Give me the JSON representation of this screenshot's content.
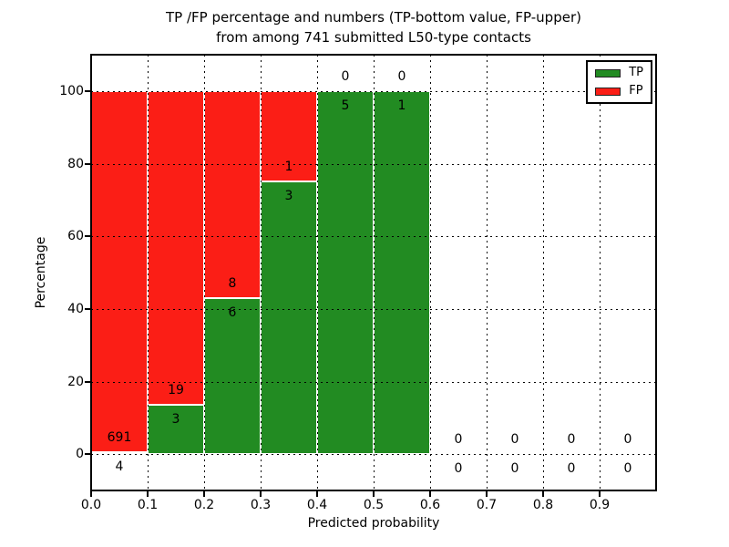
{
  "title": {
    "line1": "TP /FP percentage and numbers (TP-bottom value, FP-upper)",
    "line2": "from among 741 submitted L50-type contacts"
  },
  "chart_data": {
    "type": "bar",
    "stacked": true,
    "title": "TP /FP percentage and numbers (TP-bottom value, FP-upper) from among 741 submitted L50-type contacts",
    "xlabel": "Predicted probability",
    "ylabel": "Percentage",
    "xlim": [
      0.0,
      1.0
    ],
    "ylim": [
      -10,
      110
    ],
    "bin_width": 0.1,
    "bin_starts": [
      0.0,
      0.1,
      0.2,
      0.3,
      0.4,
      0.5,
      0.6,
      0.7,
      0.8,
      0.9
    ],
    "x_tick_labels": [
      "0.0",
      "0.1",
      "0.2",
      "0.3",
      "0.4",
      "0.5",
      "0.6",
      "0.7",
      "0.8",
      "0.9"
    ],
    "y_tick_values": [
      0,
      20,
      40,
      60,
      80,
      100
    ],
    "y_tick_labels": [
      "0",
      "20",
      "40",
      "60",
      "80",
      "100"
    ],
    "series": [
      {
        "name": "TP",
        "color": "#228b22",
        "counts": [
          4,
          3,
          6,
          3,
          5,
          1,
          0,
          0,
          0,
          0
        ],
        "pct": [
          0.58,
          13.64,
          42.86,
          75.0,
          100.0,
          100.0,
          0,
          0,
          0,
          0
        ]
      },
      {
        "name": "FP",
        "color": "#fb1e16",
        "counts": [
          691,
          19,
          8,
          1,
          0,
          0,
          0,
          0,
          0,
          0
        ],
        "pct": [
          99.42,
          86.36,
          57.14,
          25.0,
          0.0,
          0.0,
          0,
          0,
          0,
          0
        ]
      }
    ],
    "total_contacts": 741,
    "bar_edge_color": "#ffffff",
    "grid": {
      "style": "dotted",
      "color": "#000000",
      "above_bars": true
    },
    "legend": {
      "position": "upper right",
      "entries": [
        "TP",
        "FP"
      ]
    },
    "annotation_rule": "FP count shown above TP/FP boundary, TP count shown below boundary"
  }
}
